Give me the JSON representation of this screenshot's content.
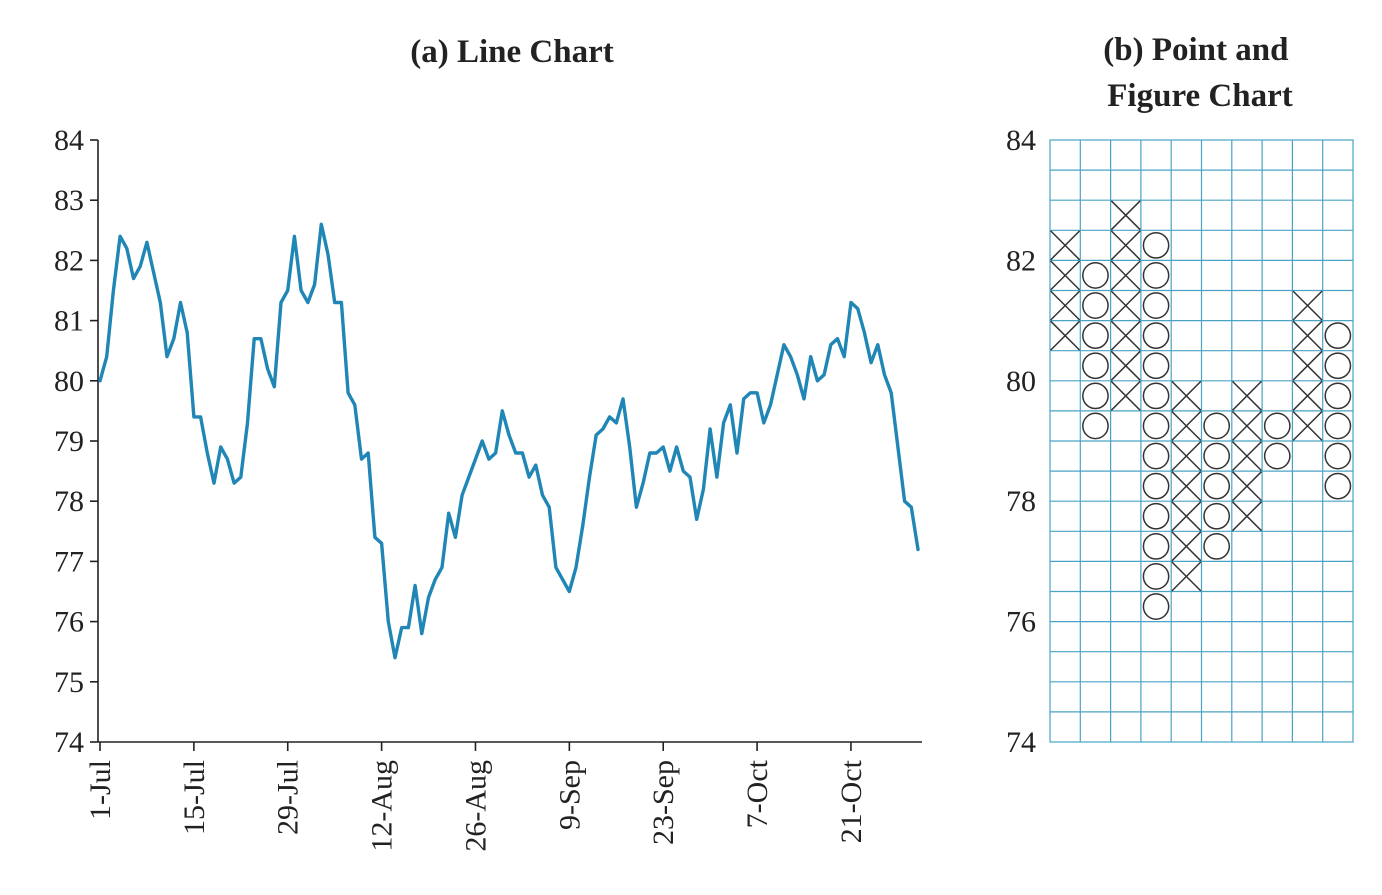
{
  "chart_data": [
    {
      "type": "line",
      "title": "(a) Line Chart",
      "xlabel": "",
      "ylabel": "",
      "ylim": [
        74,
        84
      ],
      "yticks": [
        "84",
        "83",
        "82",
        "81",
        "80",
        "79",
        "78",
        "77",
        "76",
        "75",
        "74"
      ],
      "xticks": [
        "1-Jul",
        "15-Jul",
        "29-Jul",
        "12-Aug",
        "26-Aug",
        "9-Sep",
        "23-Sep",
        "7-Oct",
        "21-Oct"
      ],
      "color": "#1f86b5",
      "series": [
        {
          "x": [
            0,
            1,
            2,
            3,
            4,
            5,
            6,
            7,
            8,
            9,
            10,
            11,
            12,
            13,
            14,
            15,
            16,
            17,
            18,
            19,
            20,
            21,
            22,
            23,
            24,
            25,
            26,
            27,
            28,
            29,
            30,
            31,
            32,
            33,
            34,
            35,
            36,
            37,
            38,
            39,
            40,
            41,
            42,
            43,
            44,
            45,
            46,
            47,
            48,
            49,
            50,
            51,
            52,
            53,
            54,
            55,
            56,
            57,
            58,
            59,
            60,
            61,
            62,
            63,
            64,
            65,
            66,
            67,
            68,
            69,
            70,
            71,
            72,
            73,
            74,
            75,
            76,
            77,
            78,
            79,
            80,
            81,
            82,
            83,
            84,
            85,
            86,
            87,
            88,
            89,
            90,
            91,
            92,
            93,
            94,
            95,
            96,
            97,
            98,
            99,
            100,
            101,
            102,
            103,
            104,
            105,
            106,
            107,
            108,
            109,
            110,
            111,
            112,
            113,
            114,
            115,
            116,
            117,
            118,
            119,
            120,
            121,
            122
          ],
          "values": [
            80.0,
            80.4,
            81.5,
            82.4,
            82.2,
            81.7,
            81.9,
            82.3,
            81.8,
            81.3,
            80.4,
            80.7,
            81.3,
            80.8,
            79.4,
            79.4,
            78.8,
            78.3,
            78.9,
            78.7,
            78.3,
            78.4,
            79.3,
            80.7,
            80.7,
            80.2,
            79.9,
            81.3,
            81.5,
            82.4,
            81.5,
            81.3,
            81.6,
            82.6,
            82.1,
            81.3,
            81.3,
            79.8,
            79.6,
            78.7,
            78.8,
            77.4,
            77.3,
            76.0,
            75.4,
            75.9,
            75.9,
            76.6,
            75.8,
            76.4,
            76.7,
            76.9,
            77.8,
            77.4,
            78.1,
            78.4,
            78.7,
            79.0,
            78.7,
            78.8,
            79.5,
            79.1,
            78.8,
            78.8,
            78.4,
            78.6,
            78.1,
            77.9,
            76.9,
            76.7,
            76.5,
            76.9,
            77.6,
            78.4,
            79.1,
            79.2,
            79.4,
            79.3,
            79.7,
            78.9,
            77.9,
            78.3,
            78.8,
            78.8,
            78.9,
            78.5,
            78.9,
            78.5,
            78.4,
            77.7,
            78.2,
            79.2,
            78.4,
            79.3,
            79.6,
            78.8,
            79.7,
            79.8,
            79.8,
            79.3,
            79.6,
            80.1,
            80.6,
            80.4,
            80.1,
            79.7,
            80.4,
            80.0,
            80.1,
            80.6,
            80.7,
            80.4,
            81.3,
            81.2,
            80.8,
            80.3,
            80.6,
            80.1,
            79.8,
            78.9,
            78.0,
            77.9,
            77.2
          ]
        }
      ]
    },
    {
      "type": "point_and_figure",
      "title": "(b) Point and Figure Chart",
      "title_lines": [
        "(b) Point and",
        "Figure Chart"
      ],
      "ylim": [
        74,
        84
      ],
      "box_size": 0.5,
      "yticks": [
        "84",
        "82",
        "80",
        "78",
        "76",
        "74"
      ],
      "columns_count": 10,
      "columns": [
        {
          "type": "X",
          "low": 80.5,
          "high": 82.0
        },
        {
          "type": "O",
          "high": 81.5,
          "low": 79.0
        },
        {
          "type": "X",
          "low": 79.5,
          "high": 82.5
        },
        {
          "type": "O",
          "high": 82.0,
          "low": 76.0
        },
        {
          "type": "X",
          "low": 76.5,
          "high": 79.5
        },
        {
          "type": "O",
          "high": 79.0,
          "low": 77.0
        },
        {
          "type": "X",
          "low": 77.5,
          "high": 79.5
        },
        {
          "type": "O",
          "high": 79.0,
          "low": 78.5
        },
        {
          "type": "X",
          "low": 79.0,
          "high": 81.0
        },
        {
          "type": "O",
          "high": 80.5,
          "low": 78.0
        }
      ]
    }
  ]
}
